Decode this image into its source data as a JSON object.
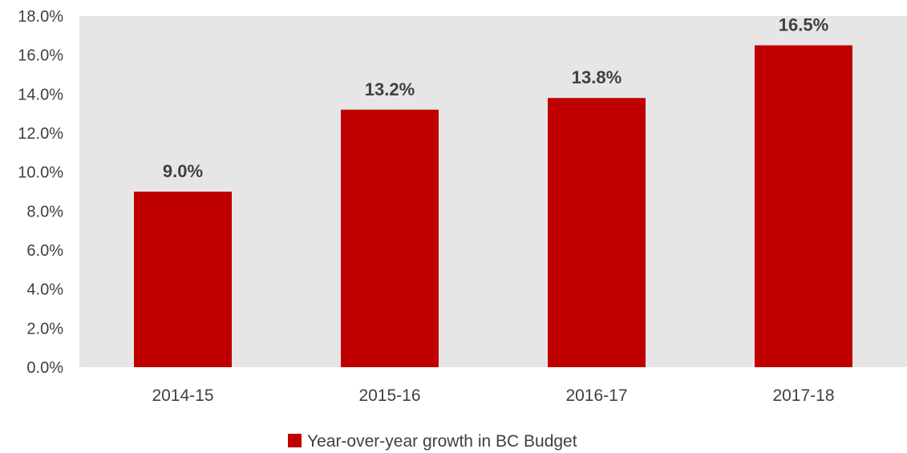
{
  "chart_data": {
    "type": "bar",
    "categories": [
      "2014-15",
      "2015-16",
      "2016-17",
      "2017-18"
    ],
    "series": [
      {
        "name": "Year-over-year growth in BC Budget",
        "values": [
          9.0,
          13.2,
          13.8,
          16.5
        ],
        "data_labels": [
          "9.0%",
          "13.2%",
          "13.8%",
          "16.5%"
        ],
        "color": "#C00000"
      }
    ],
    "y_ticks": [
      0,
      2,
      4,
      6,
      8,
      10,
      12,
      14,
      16,
      18
    ],
    "y_tick_labels": [
      "0.0%",
      "2.0%",
      "4.0%",
      "6.0%",
      "8.0%",
      "10.0%",
      "12.0%",
      "14.0%",
      "16.0%",
      "18.0%"
    ],
    "ylim": [
      0,
      18
    ],
    "title": "",
    "xlabel": "",
    "ylabel": "",
    "grid": false,
    "plot_background": "#E7E6E6",
    "legend_position": "bottom-center"
  }
}
